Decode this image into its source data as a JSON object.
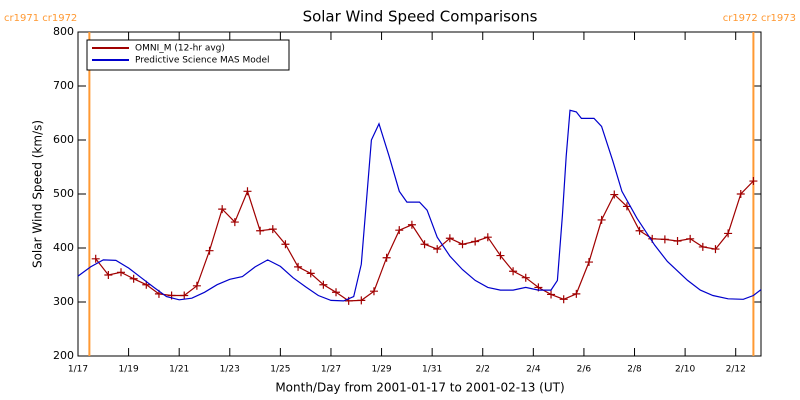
{
  "chart_data": {
    "type": "line",
    "title": "Solar Wind Speed Comparisons",
    "xlabel": "Month/Day from 2001-01-17 to 2001-02-13 (UT)",
    "ylabel": "Solar Wind Speed (km/s)",
    "xlim": [
      0,
      27
    ],
    "xticks": [
      {
        "value": 0,
        "label": "1/17"
      },
      {
        "value": 2,
        "label": "1/19"
      },
      {
        "value": 4,
        "label": "1/21"
      },
      {
        "value": 6,
        "label": "1/23"
      },
      {
        "value": 8,
        "label": "1/25"
      },
      {
        "value": 10,
        "label": "1/27"
      },
      {
        "value": 12,
        "label": "1/29"
      },
      {
        "value": 14,
        "label": "1/31"
      },
      {
        "value": 16,
        "label": "2/2"
      },
      {
        "value": 18,
        "label": "2/4"
      },
      {
        "value": 20,
        "label": "2/6"
      },
      {
        "value": 22,
        "label": "2/8"
      },
      {
        "value": 24,
        "label": "2/10"
      },
      {
        "value": 26,
        "label": "2/12"
      }
    ],
    "ylim": [
      200,
      800
    ],
    "yticks": [
      200,
      300,
      400,
      500,
      600,
      700,
      800
    ],
    "legend": "top-left",
    "markers": [
      {
        "x": 0.45,
        "label": "cr1971 cr1972",
        "color": "#ff9933"
      },
      {
        "x": 26.7,
        "label": "cr1972 cr1973",
        "color": "#ff9933"
      }
    ],
    "series": [
      {
        "name": "OMNI_M (12-hr avg)",
        "color": "#a00000",
        "marker": "+",
        "x": [
          0.7,
          1.2,
          1.7,
          2.2,
          2.7,
          3.2,
          3.7,
          4.2,
          4.7,
          5.2,
          5.7,
          6.2,
          6.7,
          7.2,
          7.7,
          8.2,
          8.7,
          9.2,
          9.7,
          10.2,
          10.7,
          11.2,
          11.7,
          12.2,
          12.7,
          13.2,
          13.7,
          14.2,
          14.7,
          15.2,
          15.7,
          16.2,
          16.7,
          17.2,
          17.7,
          18.2,
          18.7,
          19.2,
          19.7,
          20.2,
          20.7,
          21.2,
          21.7,
          22.2,
          22.7,
          23.2,
          23.7,
          24.2,
          24.7,
          25.2,
          25.7,
          26.2,
          26.7
        ],
        "values": [
          380,
          350,
          355,
          343,
          332,
          315,
          312,
          312,
          330,
          395,
          472,
          448,
          505,
          432,
          435,
          407,
          365,
          353,
          332,
          318,
          302,
          303,
          320,
          382,
          433,
          443,
          407,
          398,
          418,
          407,
          412,
          420,
          386,
          357,
          345,
          327,
          314,
          305,
          315,
          374,
          452,
          499,
          477,
          432,
          417,
          416,
          413,
          417,
          402,
          398,
          427,
          500,
          524
        ]
      },
      {
        "name": "Predictive Science MAS Model",
        "color": "#0000cc",
        "marker": "none",
        "x": [
          0,
          0.5,
          1,
          1.5,
          2,
          2.5,
          3,
          3.5,
          4,
          4.5,
          5,
          5.5,
          6,
          6.5,
          7,
          7.5,
          8,
          8.5,
          9,
          9.5,
          10,
          10.5,
          10.9,
          11.2,
          11.6,
          11.9,
          12.3,
          12.7,
          13,
          13.5,
          13.8,
          14.2,
          14.7,
          15.2,
          15.7,
          16.2,
          16.7,
          17.2,
          17.7,
          18.2,
          18.7,
          18.95,
          19.15,
          19.3,
          19.45,
          19.7,
          19.9,
          20.4,
          20.7,
          21.15,
          21.5,
          22.1,
          22.8,
          23.3,
          24.1,
          24.6,
          25.1,
          25.7,
          26.3,
          26.7,
          27
        ],
        "values": [
          348,
          365,
          378,
          377,
          363,
          345,
          327,
          310,
          304,
          307,
          318,
          332,
          342,
          347,
          365,
          378,
          366,
          345,
          328,
          312,
          303,
          302,
          310,
          370,
          600,
          630,
          570,
          505,
          485,
          485,
          470,
          420,
          385,
          360,
          340,
          327,
          322,
          322,
          327,
          322,
          322,
          340,
          460,
          570,
          655,
          652,
          640,
          640,
          625,
          560,
          505,
          455,
          405,
          375,
          340,
          322,
          312,
          306,
          305,
          312,
          323
        ]
      }
    ]
  }
}
